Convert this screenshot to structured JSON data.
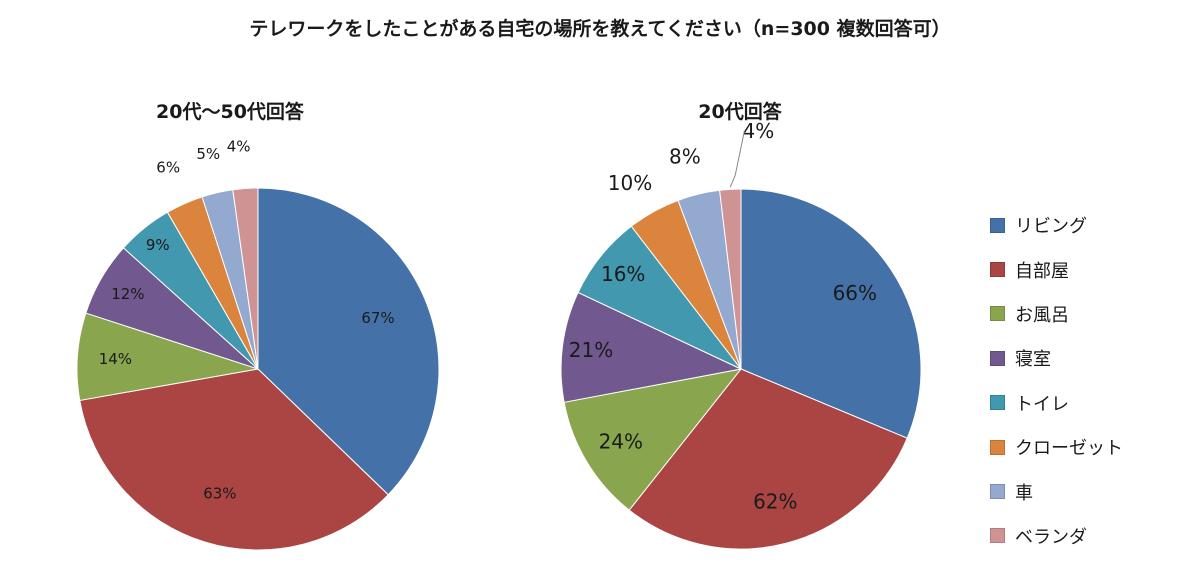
{
  "title": "テレワークをしたことがある自宅の場所を教えてください（n=300 複数回答可）",
  "colors": [
    "#4472a8",
    "#aa4544",
    "#89a54e",
    "#71588f",
    "#4298af",
    "#db843d",
    "#93a9d0",
    "#d09393"
  ],
  "legend": [
    "リビング",
    "自部屋",
    "お風呂",
    "寝室",
    "トイレ",
    "クローゼット",
    "車",
    "ベランダ"
  ],
  "chart_data": [
    {
      "type": "pie",
      "title": "20代～50代回答",
      "categories": [
        "リビング",
        "自部屋",
        "お風呂",
        "寝室",
        "トイレ",
        "クローゼット",
        "車",
        "ベランダ"
      ],
      "values": [
        67,
        63,
        14,
        12,
        9,
        6,
        5,
        4
      ],
      "labels": [
        "67%",
        "63%",
        "14%",
        "12%",
        "9%",
        "6%",
        "5%",
        "4%"
      ]
    },
    {
      "type": "pie",
      "title": "20代回答",
      "categories": [
        "リビング",
        "自部屋",
        "お風呂",
        "寝室",
        "トイレ",
        "クローゼット",
        "車",
        "ベランダ"
      ],
      "values": [
        66,
        62,
        24,
        21,
        16,
        10,
        8,
        4
      ],
      "labels": [
        "66%",
        "62%",
        "24%",
        "21%",
        "16%",
        "10%",
        "8%",
        "4%"
      ]
    }
  ]
}
